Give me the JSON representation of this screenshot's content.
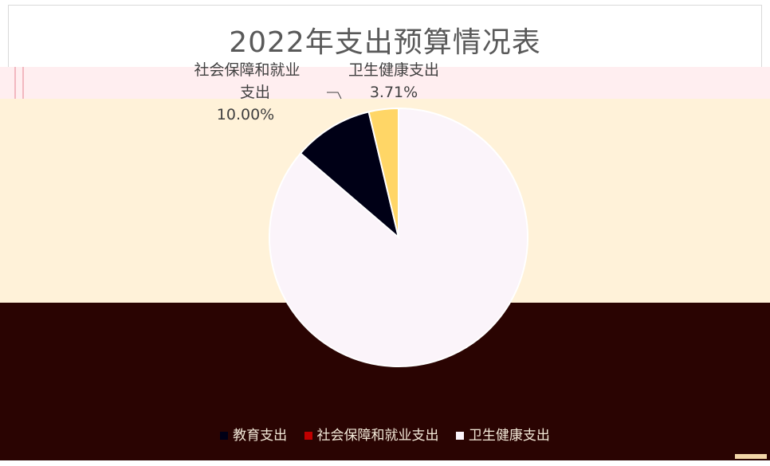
{
  "chart_data": {
    "type": "pie",
    "title": "2022年支出预算情况表",
    "slices": [
      {
        "name": "教育支出",
        "value": 86.29,
        "color": "#fbf4fa"
      },
      {
        "name": "社会保障和就业支出",
        "value": 10.0,
        "color": "#000016"
      },
      {
        "name": "卫生健康支出",
        "value": 3.71,
        "color": "#ffd666"
      }
    ],
    "data_labels": [
      {
        "name": "社会保障和就业支出",
        "percent": "10.00%"
      },
      {
        "name": "卫生健康支出",
        "percent": "3.71%"
      }
    ],
    "legend_position": "bottom",
    "legend": [
      "教育支出",
      "社会保障和就业支出",
      "卫生健康支出"
    ]
  }
}
